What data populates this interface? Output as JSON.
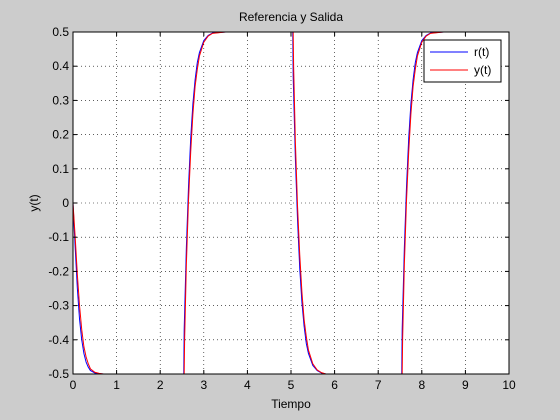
{
  "chart_data": {
    "type": "line",
    "title": "Referencia y Salida",
    "xlabel": "Tiempo",
    "ylabel": "y(t)",
    "xlim": [
      0,
      10
    ],
    "ylim": [
      -0.5,
      0.5
    ],
    "grid": true,
    "legend_position": "top-right",
    "xticks": [
      0,
      1,
      2,
      3,
      4,
      5,
      6,
      7,
      8,
      9,
      10
    ],
    "yticks": [
      -0.5,
      -0.4,
      -0.3,
      -0.2,
      -0.1,
      0,
      0.1,
      0.2,
      0.3,
      0.4,
      0.5
    ],
    "xtick_labels": [
      "0",
      "1",
      "2",
      "3",
      "4",
      "5",
      "6",
      "7",
      "8",
      "9",
      "10"
    ],
    "ytick_labels": [
      "-0.5",
      "-0.4",
      "-0.3",
      "-0.2",
      "-0.1",
      "0",
      "0.1",
      "0.2",
      "0.3",
      "0.4",
      "0.5"
    ],
    "series": [
      {
        "name": "r(t)",
        "color": "#0000ff",
        "x": [
          0,
          0.05,
          0.1,
          0.15,
          0.2,
          0.25,
          0.3,
          0.35,
          0.4,
          0.5,
          0.6,
          0.7,
          0.8,
          1.0,
          1.5,
          2.0,
          2.5,
          2.54,
          2.55,
          2.6,
          2.65,
          2.7,
          2.75,
          2.8,
          2.85,
          2.9,
          3.0,
          3.1,
          3.2,
          3.5,
          4.0,
          4.5,
          5.0,
          5.04,
          5.05,
          5.1,
          5.15,
          5.2,
          5.25,
          5.3,
          5.35,
          5.4,
          5.5,
          5.6,
          5.7,
          5.8,
          6.0,
          6.5,
          7.0,
          7.5,
          7.54,
          7.55,
          7.6,
          7.65,
          7.7,
          7.75,
          7.8,
          7.85,
          7.9,
          8.0,
          8.1,
          8.2,
          8.5
        ],
        "y": [
          0,
          -0.13,
          -0.25,
          -0.34,
          -0.4,
          -0.44,
          -0.465,
          -0.48,
          -0.49,
          -0.497,
          -0.499,
          -0.5,
          -0.5,
          -0.5,
          -0.5,
          -0.5,
          -0.5,
          -0.5,
          -0.37,
          -0.13,
          0.05,
          0.19,
          0.29,
          0.36,
          0.41,
          0.44,
          0.475,
          0.49,
          0.497,
          0.5,
          0.5,
          0.5,
          0.5,
          0.5,
          0.37,
          0.13,
          -0.05,
          -0.19,
          -0.29,
          -0.36,
          -0.41,
          -0.44,
          -0.475,
          -0.49,
          -0.497,
          -0.5,
          -0.5,
          -0.5,
          -0.5,
          -0.5,
          -0.5,
          -0.37,
          -0.13,
          0.05,
          0.19,
          0.29,
          0.36,
          0.41,
          0.44,
          0.475,
          0.49,
          0.497,
          0.5
        ]
      },
      {
        "name": "y(t)",
        "color": "#ff0000",
        "x": [
          0,
          0.05,
          0.1,
          0.15,
          0.2,
          0.25,
          0.3,
          0.35,
          0.4,
          0.5,
          0.6,
          0.7,
          0.8,
          1.0,
          1.5,
          2.0,
          2.5,
          2.55,
          2.56,
          2.6,
          2.65,
          2.7,
          2.75,
          2.8,
          2.85,
          2.9,
          3.0,
          3.1,
          3.2,
          3.5,
          4.0,
          4.5,
          5.0,
          5.05,
          5.06,
          5.1,
          5.15,
          5.2,
          5.25,
          5.3,
          5.35,
          5.4,
          5.5,
          5.6,
          5.7,
          5.8,
          6.0,
          6.5,
          7.0,
          7.5,
          7.55,
          7.56,
          7.6,
          7.65,
          7.7,
          7.75,
          7.8,
          7.85,
          7.9,
          8.0,
          8.1,
          8.2,
          8.5
        ],
        "y": [
          0,
          -0.1,
          -0.21,
          -0.3,
          -0.37,
          -0.42,
          -0.45,
          -0.47,
          -0.485,
          -0.495,
          -0.498,
          -0.5,
          -0.5,
          -0.5,
          -0.5,
          -0.5,
          -0.5,
          -0.5,
          -0.4,
          -0.18,
          0.01,
          0.15,
          0.26,
          0.34,
          0.39,
          0.43,
          0.47,
          0.488,
          0.496,
          0.5,
          0.5,
          0.5,
          0.5,
          0.5,
          0.4,
          0.18,
          -0.01,
          -0.15,
          -0.26,
          -0.34,
          -0.39,
          -0.43,
          -0.47,
          -0.488,
          -0.496,
          -0.5,
          -0.5,
          -0.5,
          -0.5,
          -0.5,
          -0.5,
          -0.4,
          -0.18,
          0.01,
          0.15,
          0.26,
          0.34,
          0.39,
          0.43,
          0.47,
          0.488,
          0.496,
          0.5
        ]
      }
    ]
  }
}
